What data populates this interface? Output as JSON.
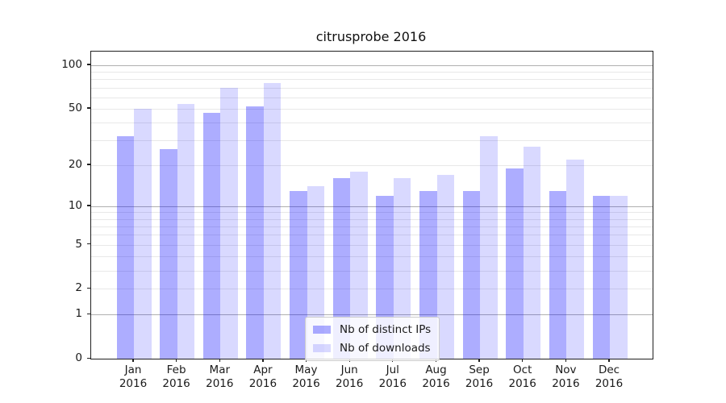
{
  "chart_data": {
    "type": "bar",
    "title": "citrusprobe 2016",
    "categories": [
      "Jan 2016",
      "Feb 2016",
      "Mar 2016",
      "Apr 2016",
      "May 2016",
      "Jun 2016",
      "Jul 2016",
      "Aug 2016",
      "Sep 2016",
      "Oct 2016",
      "Nov 2016",
      "Dec 2016"
    ],
    "series": [
      {
        "name": "Nb of distinct IPs",
        "color": "rgba(0,0,255,0.32)",
        "values": [
          32,
          26,
          47,
          52,
          13,
          16,
          12,
          13,
          13,
          19,
          13,
          12
        ]
      },
      {
        "name": "Nb of downloads",
        "color": "rgba(0,0,255,0.15)",
        "values": [
          50,
          54,
          70,
          75,
          14,
          18,
          16,
          17,
          32,
          27,
          22,
          12
        ]
      }
    ],
    "y_axis": {
      "scale": "log1p",
      "tick_labels": [
        100,
        50,
        20,
        10,
        5,
        2,
        1,
        0
      ],
      "major_gridlines": [
        1,
        10,
        100
      ],
      "minor_gridlines": [
        2,
        3,
        4,
        5,
        6,
        7,
        8,
        9,
        20,
        30,
        40,
        50,
        60,
        70,
        80,
        90
      ],
      "range": [
        0,
        124
      ]
    },
    "legend": {
      "position": "inside-bottom-center-left"
    },
    "grid": true,
    "colors": {
      "major_grid": "#b0b0b0",
      "minor_grid": "#e8e8e8",
      "axis": "#202020",
      "background": "#ffffff"
    }
  }
}
